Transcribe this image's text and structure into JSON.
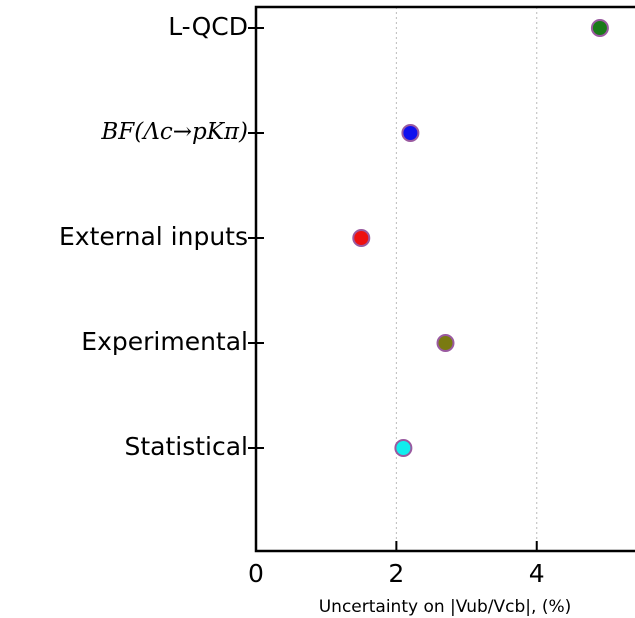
{
  "chart_data": {
    "type": "scatter",
    "xlabel": "Uncertainty on |Vub/Vcb|, (%)",
    "categories": [
      "L-QCD",
      "BF(Λc→pKπ)",
      "External inputs",
      "Experimental",
      "Statistical"
    ],
    "values": [
      4.9,
      2.2,
      1.5,
      2.7,
      2.1
    ],
    "colors": [
      "#1a7a1a",
      "#1010ee",
      "#ee1010",
      "#7a7a10",
      "#10eeee"
    ],
    "edge_color": "#9a5aa0",
    "xlim": [
      0,
      5.4
    ],
    "xticks": [
      0,
      2,
      4
    ],
    "grid": true
  }
}
